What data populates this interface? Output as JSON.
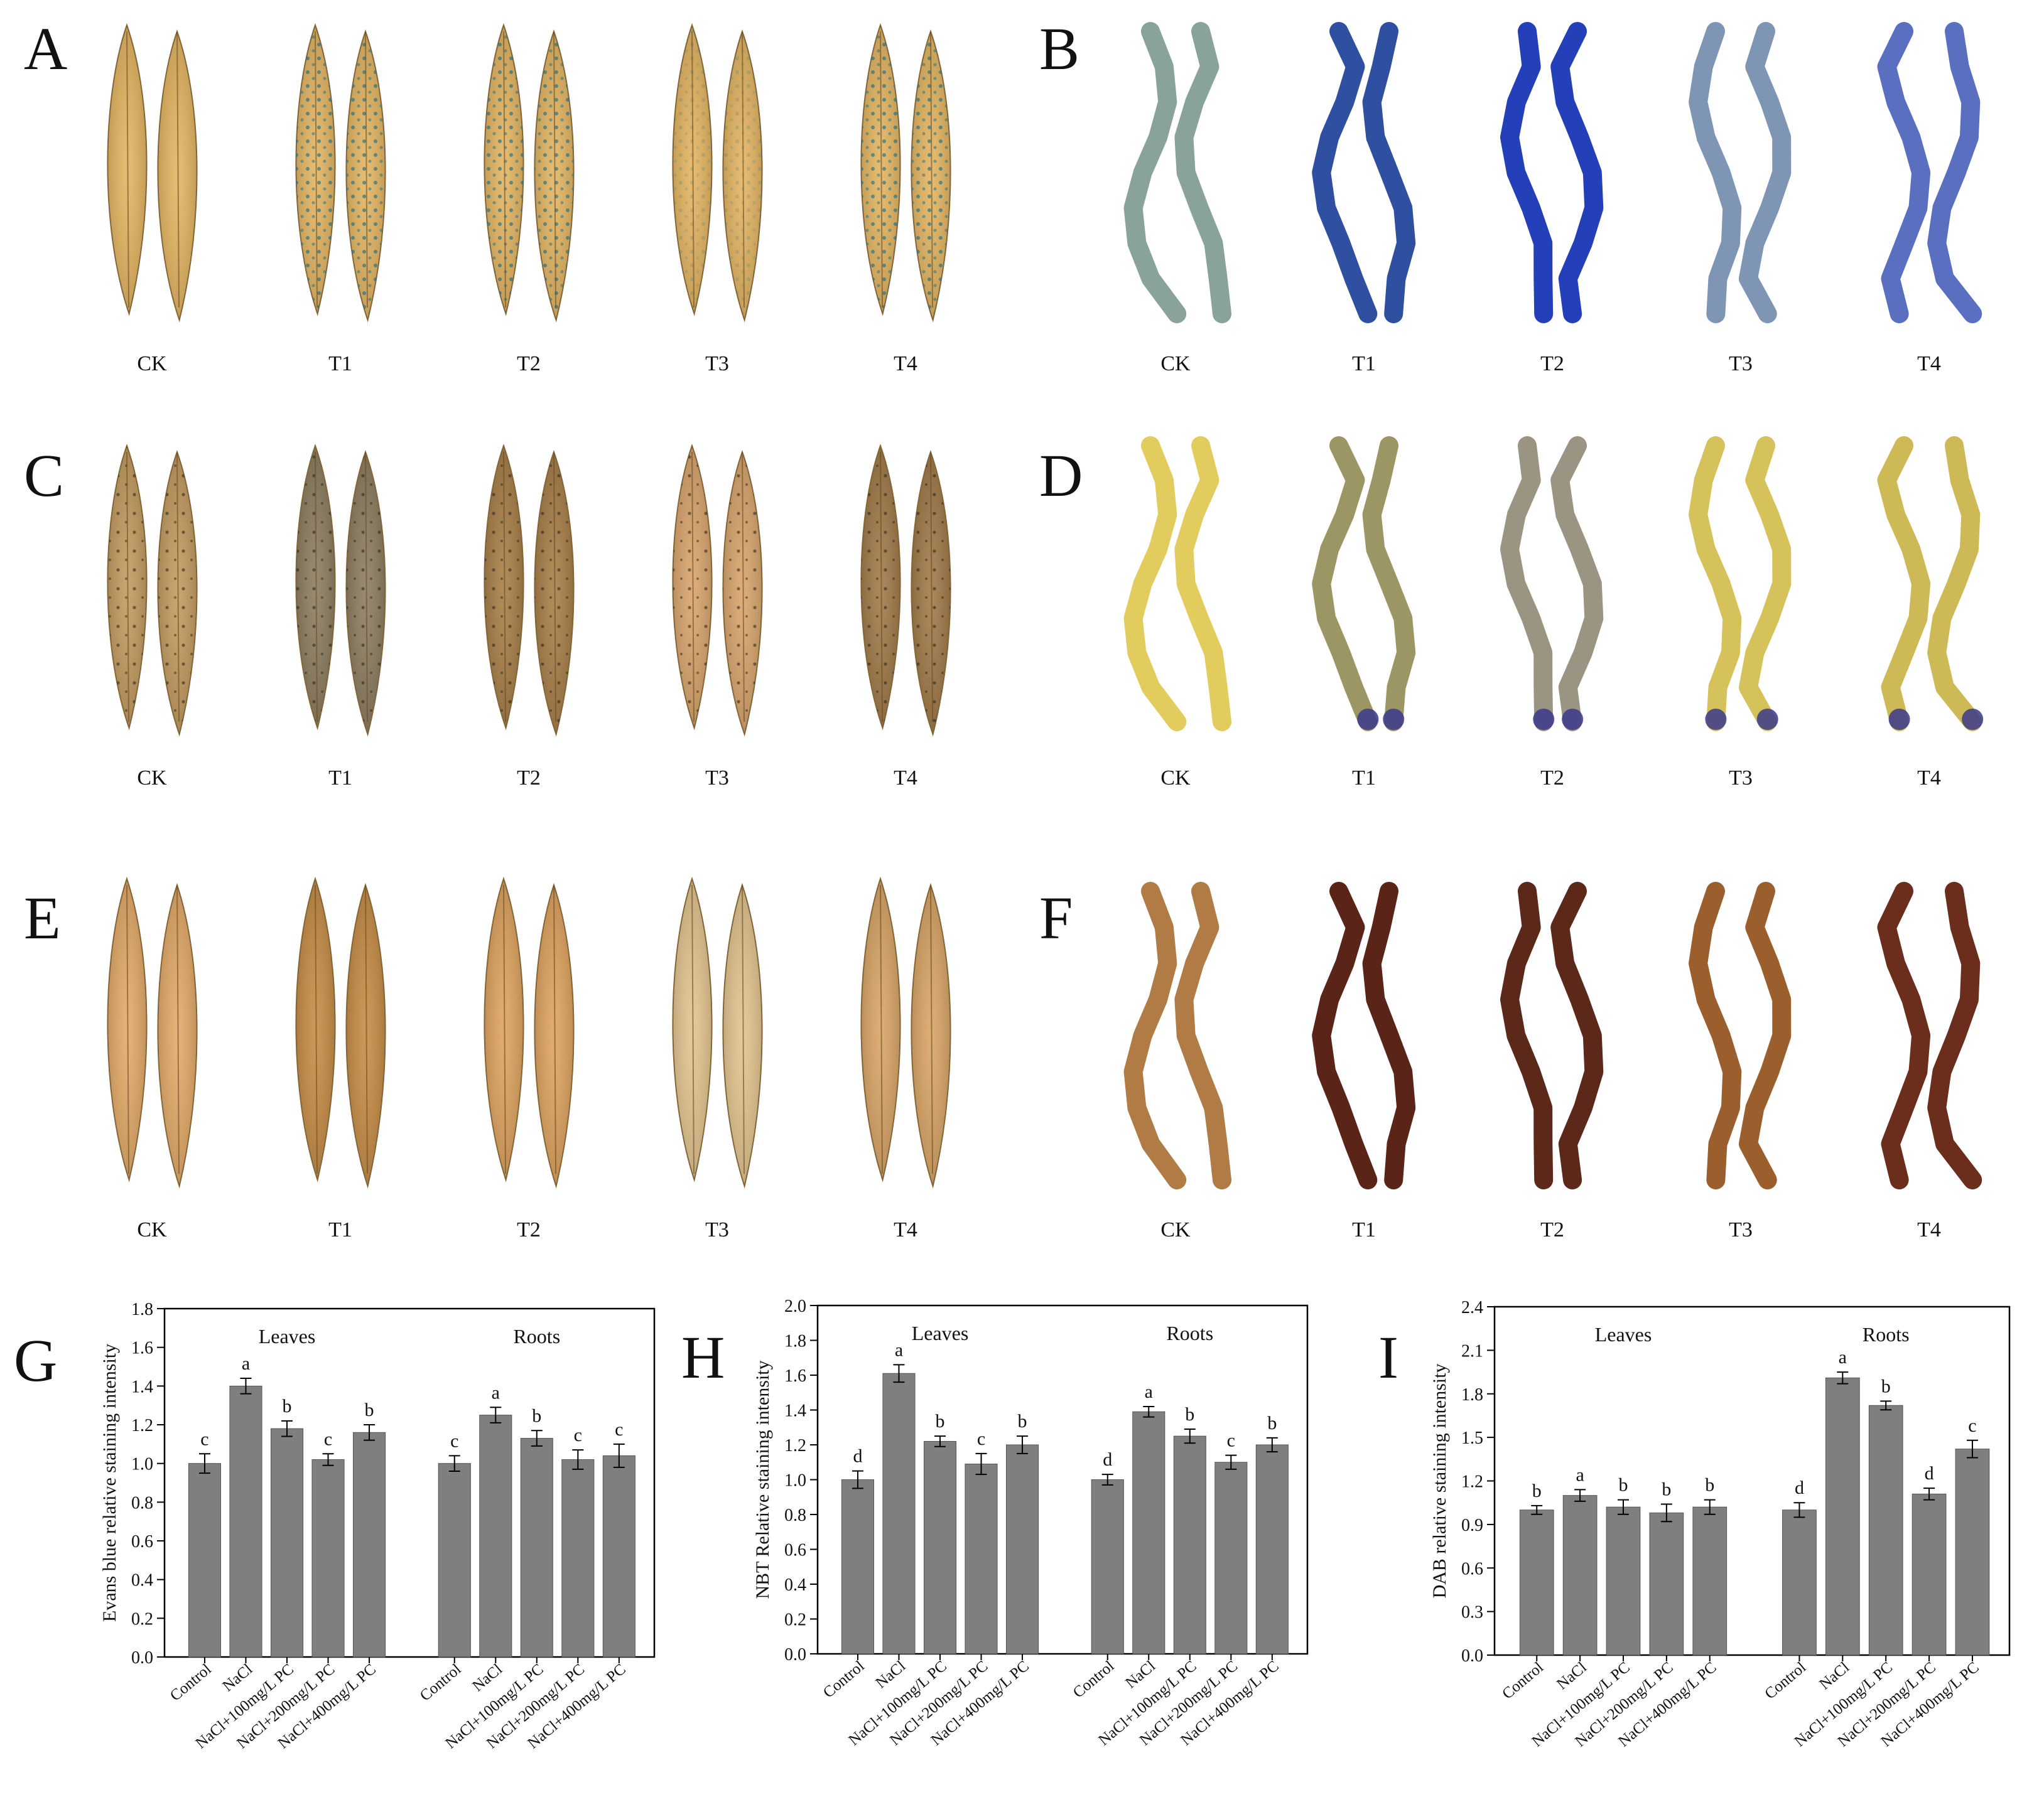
{
  "panels": {
    "A": {
      "letter": "A",
      "labels": [
        "CK",
        "T1",
        "T2",
        "T3",
        "T4"
      ],
      "subject": "leaf",
      "stain_color": "#1f7f8a",
      "base_color": "#e3b45f"
    },
    "B": {
      "letter": "B",
      "labels": [
        "CK",
        "T1",
        "T2",
        "T3",
        "T4"
      ],
      "subject": "root",
      "colors": [
        "#8aa39a",
        "#2f4fa0",
        "#2440b8",
        "#7f95b4",
        "#5a6fc0"
      ]
    },
    "C": {
      "letter": "C",
      "labels": [
        "CK",
        "T1",
        "T2",
        "T3",
        "T4"
      ],
      "subject": "leaf",
      "colors": [
        "#c29a5d",
        "#8a7b5d",
        "#a77d45",
        "#d8a46a",
        "#a07846"
      ]
    },
    "D": {
      "letter": "D",
      "labels": [
        "CK",
        "T1",
        "T2",
        "T3",
        "T4"
      ],
      "subject": "root",
      "colors": [
        "#e2cc5e",
        "#9b9664",
        "#9a9583",
        "#d6c25a",
        "#cdb955"
      ],
      "tip_color": "#3b3a8c"
    },
    "E": {
      "letter": "E",
      "labels": [
        "CK",
        "T1",
        "T2",
        "T3",
        "T4"
      ],
      "subject": "leaf",
      "colors": [
        "#e3a966",
        "#c68b43",
        "#dea25c",
        "#e2c48e",
        "#d9a464"
      ]
    },
    "F": {
      "letter": "F",
      "labels": [
        "CK",
        "T1",
        "T2",
        "T3",
        "T4"
      ],
      "subject": "root",
      "colors": [
        "#b07b45",
        "#5a2418",
        "#5c2819",
        "#9b5f2d",
        "#6b2e1c"
      ]
    }
  },
  "chart_data": [
    {
      "panel": "G",
      "type": "bar",
      "ylabel": "Evans blue relative staining intensity",
      "ylim": [
        0,
        1.8
      ],
      "yticks": [
        "0.0",
        "0.2",
        "0.4",
        "0.6",
        "0.8",
        "1.0",
        "1.2",
        "1.4",
        "1.6",
        "1.8"
      ],
      "categories": [
        "Control",
        "NaCl",
        "NaCl+100mg/L PC",
        "NaCl+200mg/L PC",
        "NaCl+400mg/L PC"
      ],
      "groups": [
        {
          "name": "Leaves",
          "values": [
            1.0,
            1.4,
            1.18,
            1.02,
            1.16
          ],
          "errors": [
            0.05,
            0.04,
            0.04,
            0.03,
            0.04
          ],
          "letters": [
            "c",
            "a",
            "b",
            "c",
            "b"
          ]
        },
        {
          "name": "Roots",
          "values": [
            1.0,
            1.25,
            1.13,
            1.02,
            1.04
          ],
          "errors": [
            0.04,
            0.04,
            0.04,
            0.05,
            0.06
          ],
          "letters": [
            "c",
            "a",
            "b",
            "c",
            "c"
          ]
        }
      ],
      "bar_color": "#7f7f7f"
    },
    {
      "panel": "H",
      "type": "bar",
      "ylabel": "NBT Relative staining intensity",
      "ylim": [
        0,
        2.0
      ],
      "yticks": [
        "0.0",
        "0.2",
        "0.4",
        "0.6",
        "0.8",
        "1.0",
        "1.2",
        "1.4",
        "1.6",
        "1.8",
        "2.0"
      ],
      "categories": [
        "Control",
        "NaCl",
        "NaCl+100mg/L PC",
        "NaCl+200mg/L PC",
        "NaCl+400mg/L PC"
      ],
      "groups": [
        {
          "name": "Leaves",
          "values": [
            1.0,
            1.61,
            1.22,
            1.09,
            1.2
          ],
          "errors": [
            0.05,
            0.05,
            0.03,
            0.06,
            0.05
          ],
          "letters": [
            "d",
            "a",
            "b",
            "c",
            "b"
          ]
        },
        {
          "name": "Roots",
          "values": [
            1.0,
            1.39,
            1.25,
            1.1,
            1.2
          ],
          "errors": [
            0.03,
            0.03,
            0.04,
            0.04,
            0.04
          ],
          "letters": [
            "d",
            "a",
            "b",
            "c",
            "b"
          ]
        }
      ],
      "bar_color": "#7f7f7f"
    },
    {
      "panel": "I",
      "type": "bar",
      "ylabel": "DAB relative staining intensity",
      "ylim": [
        0,
        2.4
      ],
      "yticks": [
        "0.0",
        "0.3",
        "0.6",
        "0.9",
        "1.2",
        "1.5",
        "1.8",
        "2.1",
        "2.4"
      ],
      "categories": [
        "Control",
        "NaCl",
        "NaCl+100mg/L PC",
        "NaCl+200mg/L PC",
        "NaCl+400mg/L PC"
      ],
      "groups": [
        {
          "name": "Leaves",
          "values": [
            1.0,
            1.1,
            1.02,
            0.98,
            1.02
          ],
          "errors": [
            0.03,
            0.04,
            0.05,
            0.06,
            0.05
          ],
          "letters": [
            "b",
            "a",
            "b",
            "b",
            "b"
          ]
        },
        {
          "name": "Roots",
          "values": [
            1.0,
            1.91,
            1.72,
            1.11,
            1.42
          ],
          "errors": [
            0.05,
            0.04,
            0.03,
            0.04,
            0.06
          ],
          "letters": [
            "d",
            "a",
            "b",
            "d",
            "c"
          ]
        }
      ],
      "bar_color": "#7f7f7f"
    }
  ]
}
